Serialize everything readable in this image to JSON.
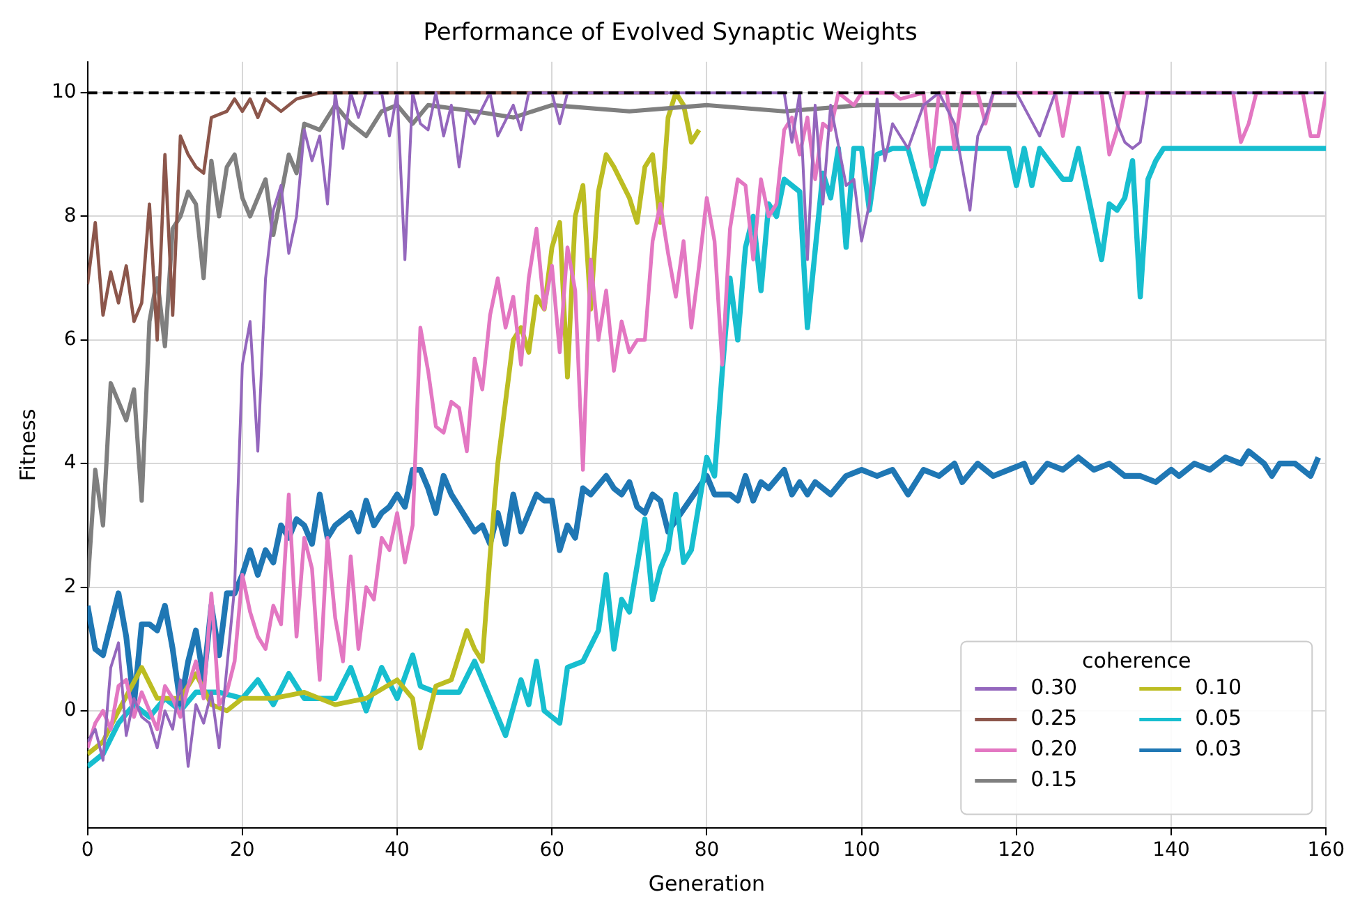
{
  "chart_data": {
    "type": "line",
    "title": "Performance of Evolved Synaptic Weights",
    "xlabel": "Generation",
    "ylabel": "Fitness",
    "legend_title": "coherence",
    "legend": "bottom right",
    "grid": true,
    "marker": "none",
    "line_style": "solid",
    "xlim": [
      0,
      160
    ],
    "xticks": [
      0,
      20,
      40,
      60,
      80,
      100,
      120,
      140,
      160
    ],
    "ylim": [
      -1.9,
      10.5
    ],
    "yticks": [
      0,
      2,
      4,
      6,
      8,
      10
    ],
    "ref_lines": [
      {
        "axis": "y",
        "value": 10,
        "color": "#000000",
        "line_style": "dashed"
      }
    ],
    "series": [
      {
        "name": "0.30",
        "color": "#9467bd",
        "x": [
          0,
          1,
          2,
          3,
          4,
          5,
          6,
          7,
          8,
          9,
          10,
          11,
          12,
          13,
          14,
          15,
          16,
          17,
          18,
          19,
          20,
          21,
          22,
          23,
          24,
          25,
          26,
          27,
          28,
          29,
          30,
          31,
          32,
          33,
          34,
          35,
          36,
          38,
          39,
          40,
          41,
          42,
          43,
          44,
          45,
          46,
          47,
          48,
          49,
          50,
          52,
          53,
          55,
          56,
          57,
          60,
          61,
          62,
          90,
          91,
          92,
          93,
          94,
          95,
          96,
          98,
          99,
          100,
          101,
          102,
          103,
          104,
          106,
          108,
          110,
          112,
          114,
          115,
          116,
          117,
          120,
          123,
          125,
          132,
          133,
          134,
          135,
          136,
          137,
          160
        ],
        "values": [
          -0.5,
          -0.3,
          -0.8,
          0.7,
          1.1,
          -0.4,
          0.2,
          -0.1,
          -0.2,
          -0.6,
          0.0,
          -0.3,
          0.5,
          -0.9,
          0.1,
          -0.2,
          0.3,
          -0.6,
          0.7,
          2.0,
          5.6,
          6.3,
          4.2,
          7.0,
          8.1,
          8.5,
          7.4,
          8.0,
          9.4,
          8.9,
          9.3,
          8.2,
          10,
          9.1,
          10,
          9.6,
          10,
          10,
          9.3,
          10,
          7.3,
          10,
          9.5,
          9.4,
          10,
          9.3,
          9.8,
          8.8,
          9.7,
          9.5,
          10,
          9.3,
          9.8,
          9.4,
          10,
          10,
          9.5,
          10,
          10,
          9.2,
          10,
          7.3,
          9.8,
          8.2,
          9.8,
          8.5,
          8.6,
          7.6,
          8.2,
          9.9,
          8.9,
          9.5,
          9.1,
          9.8,
          10,
          9.5,
          8.1,
          9.3,
          9.6,
          10,
          10,
          9.3,
          10,
          10,
          9.5,
          9.2,
          9.1,
          9.2,
          10,
          10
        ]
      },
      {
        "name": "0.25",
        "color": "#8c564b",
        "x": [
          0,
          1,
          2,
          3,
          4,
          5,
          6,
          7,
          8,
          9,
          10,
          11,
          12,
          13,
          14,
          15,
          16,
          18,
          19,
          20,
          21,
          22,
          23,
          25,
          27,
          30,
          75
        ],
        "values": [
          6.9,
          7.9,
          6.4,
          7.1,
          6.6,
          7.2,
          6.3,
          6.6,
          8.2,
          6.0,
          9.0,
          6.4,
          9.3,
          9.0,
          8.8,
          8.7,
          9.6,
          9.7,
          9.9,
          9.7,
          9.9,
          9.6,
          9.9,
          9.7,
          9.9,
          10,
          10
        ]
      },
      {
        "name": "0.20",
        "color": "#e377c2",
        "x": [
          0,
          1,
          2,
          3,
          4,
          5,
          6,
          7,
          8,
          9,
          10,
          11,
          12,
          13,
          14,
          15,
          16,
          17,
          18,
          19,
          20,
          21,
          22,
          23,
          24,
          25,
          26,
          27,
          28,
          29,
          30,
          31,
          32,
          33,
          34,
          35,
          36,
          37,
          38,
          39,
          40,
          41,
          42,
          43,
          44,
          45,
          46,
          47,
          48,
          49,
          50,
          51,
          52,
          53,
          54,
          55,
          56,
          57,
          58,
          59,
          60,
          61,
          62,
          63,
          64,
          65,
          66,
          67,
          68,
          69,
          70,
          71,
          72,
          73,
          74,
          75,
          76,
          77,
          78,
          79,
          80,
          81,
          82,
          83,
          84,
          85,
          86,
          87,
          88,
          89,
          90,
          91,
          92,
          93,
          94,
          95,
          96,
          97,
          99,
          100,
          104,
          105,
          108,
          109,
          110,
          111,
          112,
          113,
          115,
          116,
          117,
          125,
          126,
          127,
          131,
          132,
          133,
          134,
          148,
          149,
          150,
          151,
          157,
          158,
          159,
          160
        ],
        "values": [
          -0.6,
          -0.2,
          0.0,
          -0.3,
          0.4,
          0.5,
          -0.1,
          0.3,
          0.0,
          -0.3,
          0.4,
          0.2,
          -0.1,
          0.4,
          0.8,
          0.2,
          1.9,
          0.1,
          0.3,
          0.8,
          2.2,
          1.6,
          1.2,
          1.0,
          1.7,
          1.4,
          3.5,
          1.2,
          2.8,
          2.3,
          0.5,
          2.8,
          1.5,
          0.8,
          2.5,
          1.0,
          2.0,
          1.8,
          2.8,
          2.6,
          3.2,
          2.4,
          3.0,
          6.2,
          5.5,
          4.6,
          4.5,
          5.0,
          4.9,
          4.2,
          5.7,
          5.2,
          6.4,
          7.0,
          6.2,
          6.7,
          5.6,
          7.0,
          7.8,
          6.5,
          7.2,
          5.8,
          7.5,
          6.8,
          3.9,
          7.3,
          6.0,
          6.8,
          5.5,
          6.3,
          5.8,
          6.0,
          6.0,
          7.6,
          8.2,
          7.4,
          6.7,
          7.6,
          6.2,
          7.2,
          8.3,
          7.6,
          5.6,
          7.8,
          8.6,
          8.5,
          7.3,
          8.6,
          8.0,
          8.2,
          9.4,
          9.6,
          9.0,
          9.6,
          8.6,
          9.5,
          9.4,
          10,
          9.8,
          10,
          10,
          9.9,
          10,
          8.8,
          10,
          10,
          9.1,
          10,
          10,
          9.5,
          10,
          10,
          9.3,
          10,
          10,
          9.0,
          9.4,
          10,
          10,
          9.2,
          9.5,
          10,
          10,
          9.3,
          9.3,
          10
        ]
      },
      {
        "name": "0.15",
        "color": "#7f7f7f",
        "x": [
          0,
          1,
          2,
          3,
          5,
          6,
          7,
          8,
          9,
          10,
          11,
          12,
          13,
          14,
          15,
          16,
          17,
          18,
          19,
          20,
          21,
          23,
          24,
          26,
          27,
          28,
          30,
          32,
          34,
          36,
          38,
          40,
          42,
          44,
          50,
          55,
          60,
          70,
          80,
          90,
          100,
          110,
          120
        ],
        "values": [
          2.0,
          3.9,
          3.0,
          5.3,
          4.7,
          5.2,
          3.4,
          6.3,
          7.0,
          5.9,
          7.8,
          8.0,
          8.4,
          8.2,
          7.0,
          8.9,
          8.0,
          8.8,
          9.0,
          8.3,
          8.0,
          8.6,
          7.7,
          9.0,
          8.7,
          9.5,
          9.4,
          9.8,
          9.5,
          9.3,
          9.7,
          9.8,
          9.5,
          9.8,
          9.7,
          9.6,
          9.8,
          9.7,
          9.8,
          9.7,
          9.8,
          9.8,
          9.8
        ]
      },
      {
        "name": "0.10",
        "color": "#bcbd22",
        "x": [
          0,
          2,
          4,
          7,
          9,
          12,
          14,
          16,
          18,
          20,
          24,
          28,
          32,
          36,
          40,
          42,
          43,
          45,
          47,
          49,
          50,
          51,
          52,
          53,
          54,
          55,
          56,
          57,
          58,
          59,
          60,
          61,
          62,
          63,
          64,
          65,
          66,
          67,
          68,
          70,
          71,
          72,
          73,
          74,
          75,
          76,
          77,
          78,
          79
        ],
        "values": [
          -0.7,
          -0.5,
          0.0,
          0.7,
          0.2,
          0.2,
          0.6,
          0.1,
          0.0,
          0.2,
          0.2,
          0.3,
          0.1,
          0.2,
          0.5,
          0.2,
          -0.6,
          0.4,
          0.5,
          1.3,
          1.0,
          0.8,
          2.5,
          4.0,
          5.0,
          6.0,
          6.2,
          5.8,
          6.7,
          6.5,
          7.5,
          7.9,
          5.4,
          8.0,
          8.5,
          6.5,
          8.4,
          9.0,
          8.8,
          8.3,
          7.9,
          8.8,
          9.0,
          7.9,
          9.6,
          10,
          9.8,
          9.2,
          9.4
        ]
      },
      {
        "name": "0.05",
        "color": "#17becf",
        "x": [
          0,
          2,
          4,
          6,
          8,
          10,
          12,
          14,
          17,
          20,
          22,
          24,
          26,
          28,
          32,
          34,
          36,
          38,
          40,
          42,
          43,
          45,
          48,
          50,
          52,
          54,
          56,
          57,
          58,
          59,
          61,
          62,
          64,
          66,
          67,
          68,
          69,
          70,
          72,
          73,
          74,
          75,
          76,
          77,
          78,
          80,
          81,
          82,
          83,
          84,
          85,
          86,
          87,
          88,
          89,
          90,
          92,
          93,
          95,
          96,
          97,
          98,
          99,
          100,
          101,
          102,
          104,
          106,
          108,
          110,
          115,
          119,
          120,
          121,
          122,
          123,
          126,
          127,
          128,
          131,
          132,
          133,
          134,
          135,
          136,
          137,
          138,
          139,
          140,
          160
        ],
        "values": [
          -0.9,
          -0.7,
          -0.2,
          0.1,
          -0.1,
          0.2,
          0.0,
          0.3,
          0.3,
          0.2,
          0.5,
          0.1,
          0.6,
          0.2,
          0.2,
          0.7,
          0.0,
          0.7,
          0.2,
          0.9,
          0.4,
          0.3,
          0.3,
          0.8,
          0.2,
          -0.4,
          0.5,
          0.1,
          0.8,
          0.0,
          -0.2,
          0.7,
          0.8,
          1.3,
          2.2,
          1.0,
          1.8,
          1.6,
          3.1,
          1.8,
          2.3,
          2.6,
          3.5,
          2.4,
          2.6,
          4.1,
          3.8,
          5.5,
          7.0,
          6.0,
          7.5,
          8.0,
          6.8,
          8.2,
          8.0,
          8.6,
          8.4,
          6.2,
          8.7,
          8.3,
          9.1,
          7.5,
          9.1,
          9.1,
          8.1,
          9.0,
          9.1,
          9.1,
          8.2,
          9.1,
          9.1,
          9.1,
          8.5,
          9.1,
          8.5,
          9.1,
          8.6,
          8.6,
          9.1,
          7.3,
          8.2,
          8.1,
          8.3,
          8.9,
          6.7,
          8.6,
          8.9,
          9.1,
          9.1,
          9.1
        ]
      },
      {
        "name": "0.03",
        "color": "#1f77b4",
        "x": [
          0,
          1,
          2,
          4,
          5,
          6,
          7,
          8,
          9,
          10,
          11,
          12,
          13,
          14,
          15,
          16,
          17,
          18,
          19,
          20,
          21,
          22,
          23,
          24,
          25,
          26,
          27,
          28,
          29,
          30,
          31,
          32,
          33,
          34,
          35,
          36,
          37,
          38,
          39,
          40,
          41,
          42,
          43,
          44,
          45,
          46,
          47,
          48,
          49,
          50,
          51,
          52,
          53,
          54,
          55,
          56,
          58,
          59,
          60,
          61,
          62,
          63,
          64,
          65,
          67,
          68,
          69,
          70,
          71,
          72,
          73,
          74,
          75,
          80,
          81,
          83,
          84,
          85,
          86,
          87,
          88,
          90,
          91,
          92,
          93,
          94,
          96,
          98,
          100,
          102,
          104,
          106,
          108,
          110,
          112,
          113,
          115,
          117,
          119,
          121,
          122,
          124,
          126,
          128,
          130,
          132,
          134,
          136,
          138,
          140,
          141,
          143,
          145,
          147,
          149,
          150,
          152,
          153,
          154,
          156,
          158,
          159
        ],
        "values": [
          1.7,
          1.0,
          0.9,
          1.9,
          1.2,
          0.1,
          1.4,
          1.4,
          1.3,
          1.7,
          1.0,
          0.1,
          0.8,
          1.3,
          0.5,
          1.7,
          0.9,
          1.9,
          1.9,
          2.2,
          2.6,
          2.2,
          2.6,
          2.4,
          3.0,
          2.8,
          3.1,
          3.0,
          2.7,
          3.5,
          2.8,
          3.0,
          3.1,
          3.2,
          2.9,
          3.4,
          3.0,
          3.2,
          3.3,
          3.5,
          3.3,
          3.9,
          3.9,
          3.6,
          3.2,
          3.8,
          3.5,
          3.3,
          3.1,
          2.9,
          3.0,
          2.7,
          3.2,
          2.7,
          3.5,
          2.9,
          3.5,
          3.4,
          3.4,
          2.6,
          3.0,
          2.8,
          3.6,
          3.5,
          3.8,
          3.6,
          3.5,
          3.7,
          3.3,
          3.2,
          3.5,
          3.4,
          2.9,
          3.8,
          3.5,
          3.5,
          3.4,
          3.8,
          3.4,
          3.7,
          3.6,
          3.9,
          3.5,
          3.7,
          3.5,
          3.7,
          3.5,
          3.8,
          3.9,
          3.8,
          3.9,
          3.5,
          3.9,
          3.8,
          4.0,
          3.7,
          4.0,
          3.8,
          3.9,
          4.0,
          3.7,
          4.0,
          3.9,
          4.1,
          3.9,
          4.0,
          3.8,
          3.8,
          3.7,
          3.9,
          3.8,
          4.0,
          3.9,
          4.1,
          4.0,
          4.2,
          4.0,
          3.8,
          4.0,
          4.0,
          3.8,
          4.1
        ]
      }
    ]
  }
}
